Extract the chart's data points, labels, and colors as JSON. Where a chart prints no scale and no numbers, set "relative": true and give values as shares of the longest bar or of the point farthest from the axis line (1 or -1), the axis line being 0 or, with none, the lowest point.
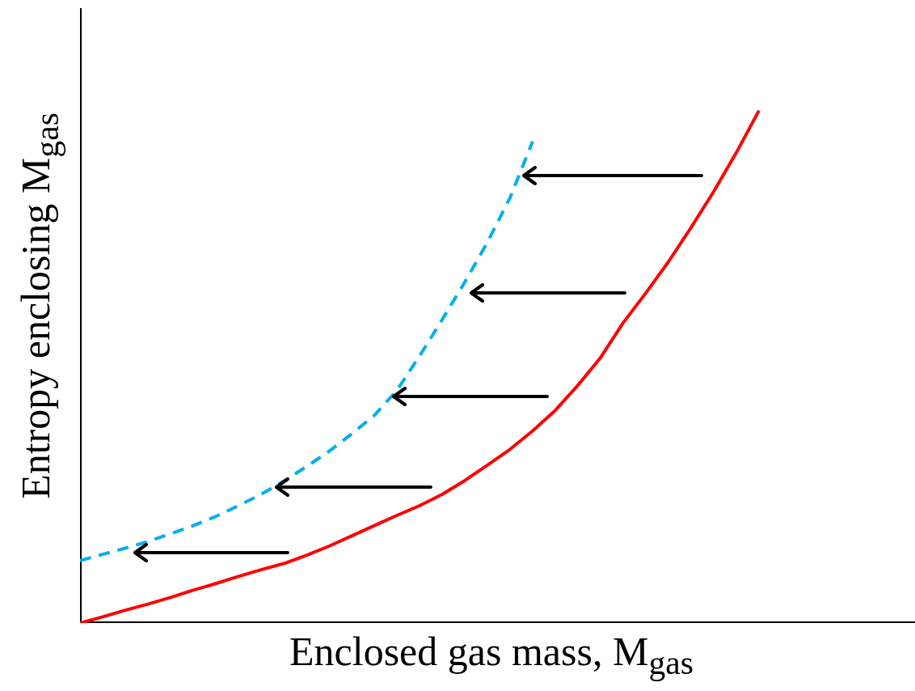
{
  "chart_data": {
    "type": "line",
    "relative": true,
    "xlabel": "Enclosed gas mass, M$_{gas}$",
    "ylabel": "Entropy enclosing M$_{gas}$",
    "categories": [
      null,
      null,
      null,
      null,
      null,
      null,
      null,
      null,
      null,
      null,
      null,
      null,
      null,
      null,
      null,
      null,
      null,
      null,
      null,
      null,
      null,
      null,
      null,
      null,
      null,
      null,
      null,
      null,
      null,
      null,
      null,
      null,
      null,
      null,
      null,
      null,
      null,
      null
    ],
    "series": [
      {
        "color": "#ff0000",
        "line_style": "solid",
        "values": [
          0,
          0.012,
          0.025,
          0.037,
          0.05,
          0.064,
          0.077,
          0.091,
          0.104,
          0.116,
          0.132,
          0.15,
          0.17,
          0.19,
          0.21,
          0.229,
          0.251,
          0.278,
          0.308,
          0.339,
          0.375,
          0.415,
          0.464,
          0.518,
          0.586,
          0.644,
          0.705,
          0.772,
          0.842,
          0.918,
          1,
          null,
          null,
          null,
          null,
          null,
          null,
          null
        ]
      },
      {
        "color": "#00aeef",
        "line_style": "dashed",
        "values": [
          0.122,
          0.134,
          0.146,
          0.159,
          0.174,
          0.19,
          0.208,
          0.229,
          0.251,
          0.277,
          0.305,
          0.335,
          0.369,
          0.405,
          0.454,
          0.521,
          0.592,
          0.665,
          0.743,
          0.83,
          0.94,
          null,
          null,
          null,
          null,
          null,
          null,
          null,
          null,
          null,
          null,
          null,
          null,
          null,
          null,
          null,
          null,
          null
        ]
      }
    ]
  }
}
